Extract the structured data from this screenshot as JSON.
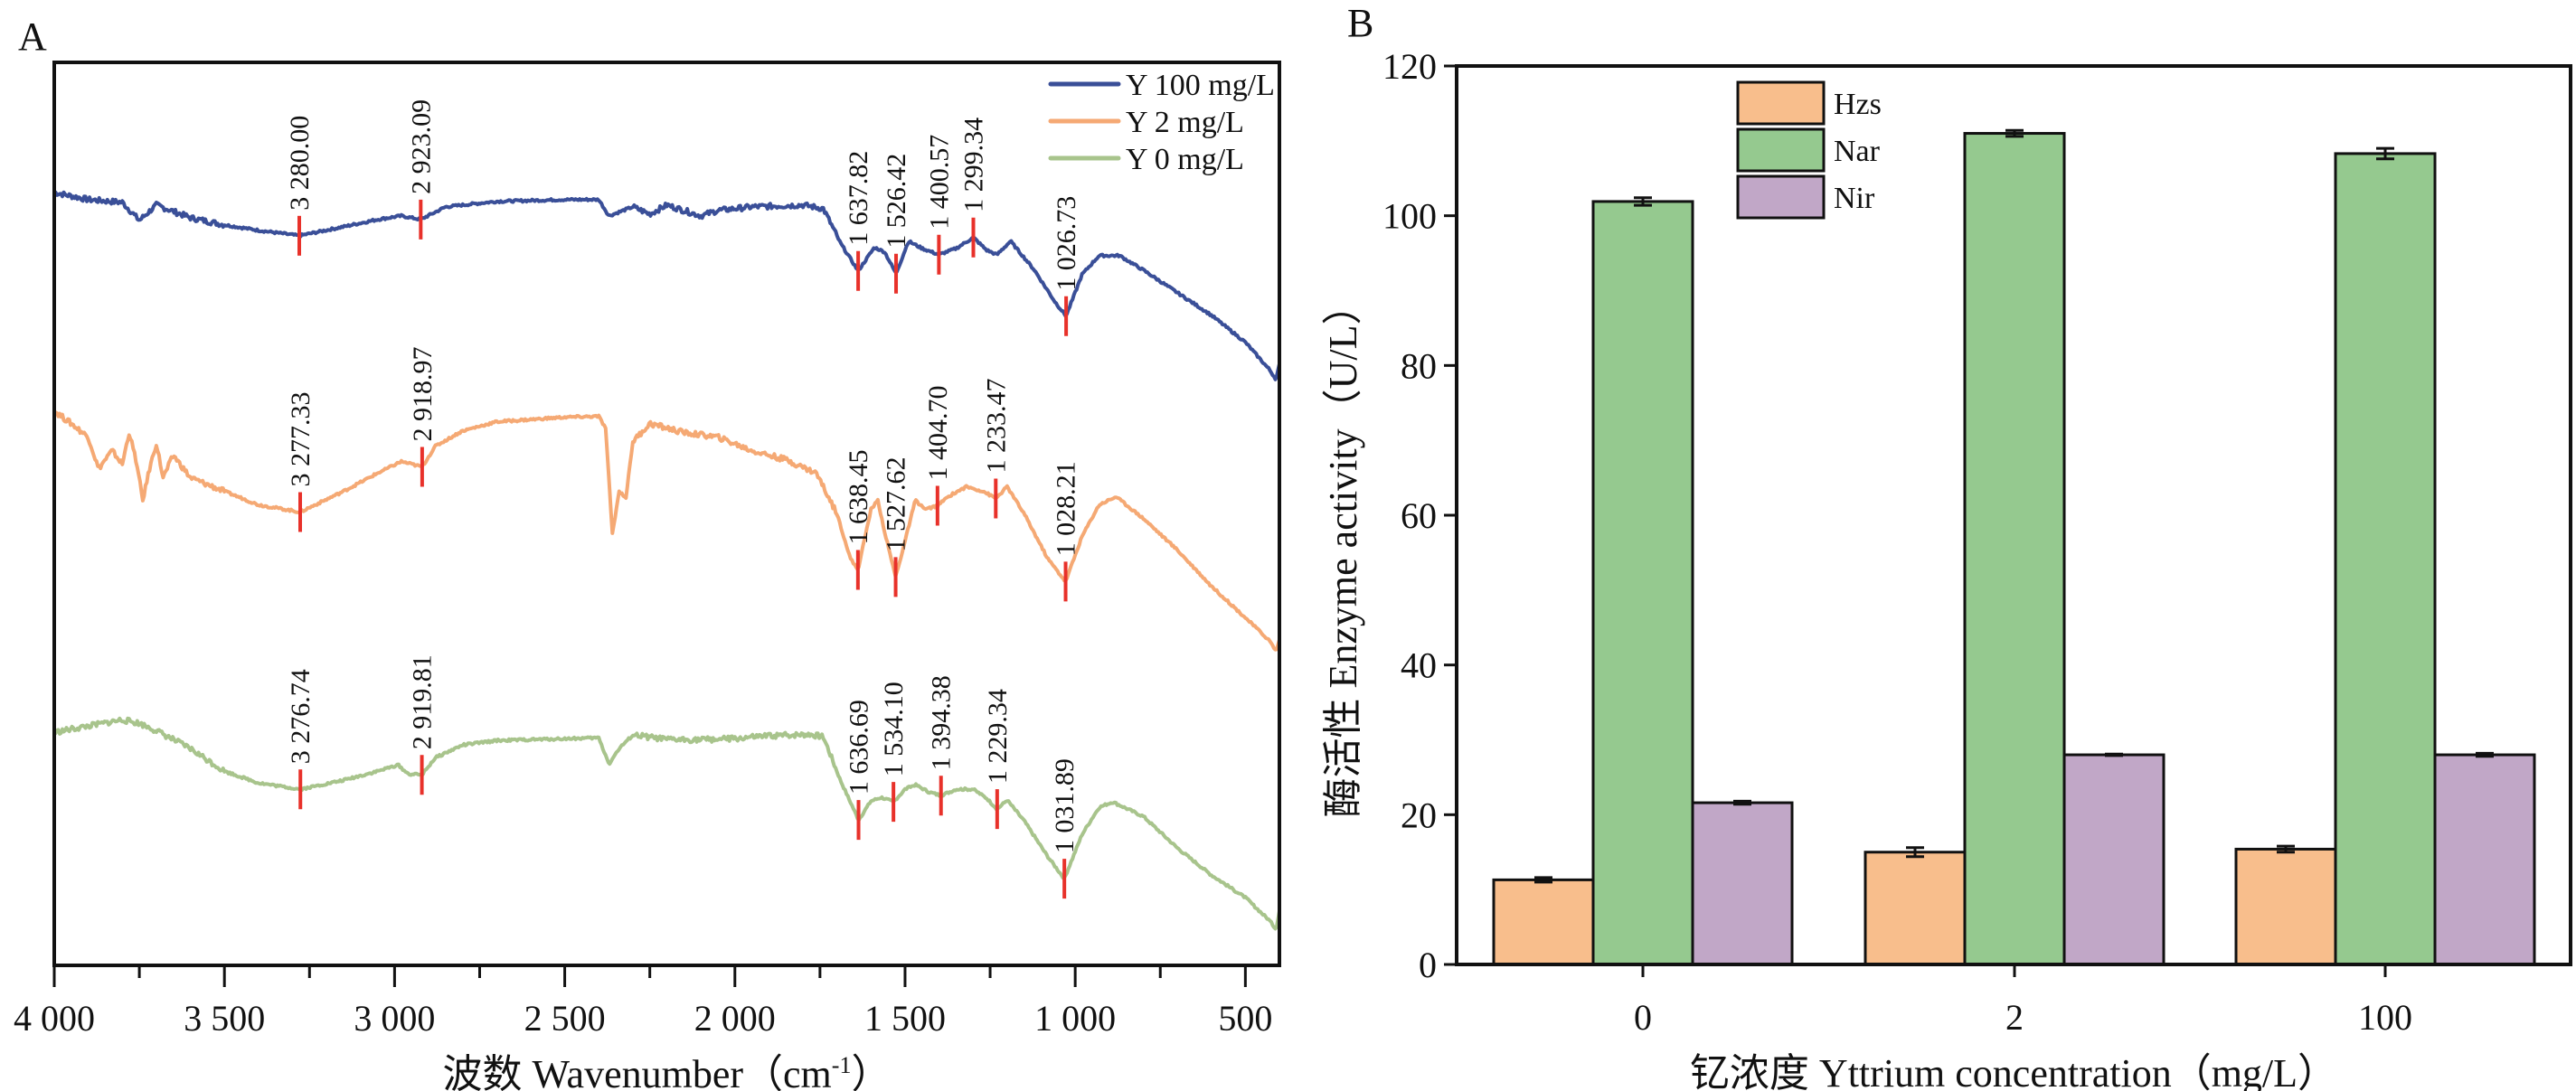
{
  "chart_data": [
    {
      "panel": "A",
      "type": "line",
      "title": "",
      "xlabel": "波数 Wavenumber（cm-1）",
      "xlabel_parts": {
        "main": "波数 Wavenumber（cm",
        "sup": "-1",
        "close": "）"
      },
      "ylabel": "",
      "xlim": [
        4000,
        400
      ],
      "xticks": [
        4000,
        3500,
        3000,
        2500,
        2000,
        1500,
        1000,
        500
      ],
      "xtick_labels": [
        "4 000",
        "3 500",
        "3 000",
        "2 500",
        "2 000",
        "1 500",
        "1 000",
        "500"
      ],
      "ylim": [
        0,
        100
      ],
      "y_units": "relative (offset traces, no y ticks)",
      "grid": false,
      "legend_position": "top-right",
      "peak_marker_color": "#e8312a",
      "series": [
        {
          "name": "Y 100 mg/L",
          "color": "#3a4f98",
          "points": [
            [
              4000,
              85.6
            ],
            [
              3900,
              84.8
            ],
            [
              3800,
              84.5
            ],
            [
              3750,
              82.5
            ],
            [
              3700,
              84.2
            ],
            [
              3600,
              82.8
            ],
            [
              3500,
              82.0
            ],
            [
              3400,
              81.4
            ],
            [
              3280,
              80.8
            ],
            [
              3150,
              81.8
            ],
            [
              3050,
              82.6
            ],
            [
              2980,
              83.0
            ],
            [
              2923,
              82.6
            ],
            [
              2850,
              84.0
            ],
            [
              2700,
              84.6
            ],
            [
              2500,
              84.8
            ],
            [
              2400,
              84.8
            ],
            [
              2370,
              83.0
            ],
            [
              2300,
              84.0
            ],
            [
              2250,
              83.2
            ],
            [
              2200,
              84.2
            ],
            [
              2100,
              83.0
            ],
            [
              2050,
              83.6
            ],
            [
              1950,
              84.0
            ],
            [
              1800,
              84.2
            ],
            [
              1740,
              83.8
            ],
            [
              1690,
              80.0
            ],
            [
              1637.82,
              76.9
            ],
            [
              1590,
              79.5
            ],
            [
              1560,
              79.0
            ],
            [
              1526.42,
              76.6
            ],
            [
              1490,
              80.2
            ],
            [
              1450,
              79.4
            ],
            [
              1400.57,
              78.7
            ],
            [
              1350,
              79.4
            ],
            [
              1299.34,
              80.6
            ],
            [
              1260,
              79.2
            ],
            [
              1230,
              78.7
            ],
            [
              1190,
              80.2
            ],
            [
              1120,
              77.0
            ],
            [
              1060,
              73.5
            ],
            [
              1026.73,
              71.9
            ],
            [
              980,
              76.5
            ],
            [
              930,
              78.6
            ],
            [
              870,
              78.6
            ],
            [
              800,
              77.0
            ],
            [
              700,
              74.5
            ],
            [
              600,
              72.0
            ],
            [
              500,
              69.0
            ],
            [
              430,
              66.0
            ],
            [
              410,
              64.9
            ],
            [
              400,
              66.5
            ]
          ],
          "peaks": [
            {
              "label": "3 280.00",
              "x": 3280.0
            },
            {
              "label": "2 923.09",
              "x": 2923.09
            },
            {
              "label": "1 637.82",
              "x": 1637.82
            },
            {
              "label": "1 526.42",
              "x": 1526.42
            },
            {
              "label": "1 400.57",
              "x": 1400.57
            },
            {
              "label": "1 299.34",
              "x": 1299.34
            },
            {
              "label": "1 026.73",
              "x": 1026.73
            }
          ]
        },
        {
          "name": "Y 2 mg/L",
          "color": "#f5a974",
          "points": [
            [
              4000,
              61.4
            ],
            [
              3950,
              60.0
            ],
            [
              3900,
              58.5
            ],
            [
              3870,
              55.0
            ],
            [
              3830,
              57.0
            ],
            [
              3800,
              55.5
            ],
            [
              3780,
              59.0
            ],
            [
              3760,
              56.0
            ],
            [
              3740,
              51.5
            ],
            [
              3720,
              55.0
            ],
            [
              3700,
              57.8
            ],
            [
              3680,
              54.0
            ],
            [
              3650,
              56.5
            ],
            [
              3600,
              54.0
            ],
            [
              3500,
              52.5
            ],
            [
              3400,
              51.0
            ],
            [
              3277.33,
              50.2
            ],
            [
              3150,
              52.5
            ],
            [
              3050,
              54.5
            ],
            [
              2980,
              55.8
            ],
            [
              2919,
              55.2
            ],
            [
              2880,
              57.5
            ],
            [
              2800,
              59.2
            ],
            [
              2700,
              60.2
            ],
            [
              2500,
              60.7
            ],
            [
              2400,
              60.8
            ],
            [
              2380,
              59.5
            ],
            [
              2360,
              47.8
            ],
            [
              2340,
              52.5
            ],
            [
              2320,
              51.8
            ],
            [
              2300,
              58.0
            ],
            [
              2250,
              60.0
            ],
            [
              2150,
              59.0
            ],
            [
              2050,
              58.5
            ],
            [
              1950,
              57.0
            ],
            [
              1850,
              56.0
            ],
            [
              1760,
              54.5
            ],
            [
              1700,
              50.0
            ],
            [
              1660,
              45.0
            ],
            [
              1638.45,
              43.8
            ],
            [
              1600,
              50.5
            ],
            [
              1580,
              51.5
            ],
            [
              1560,
              48.0
            ],
            [
              1527.62,
              43.0
            ],
            [
              1500,
              47.0
            ],
            [
              1470,
              51.5
            ],
            [
              1440,
              50.5
            ],
            [
              1404.7,
              50.9
            ],
            [
              1370,
              52.0
            ],
            [
              1320,
              53.0
            ],
            [
              1270,
              52.5
            ],
            [
              1233.47,
              51.7
            ],
            [
              1200,
              53.0
            ],
            [
              1150,
              50.0
            ],
            [
              1080,
              45.0
            ],
            [
              1028.21,
              42.5
            ],
            [
              980,
              47.5
            ],
            [
              930,
              51.0
            ],
            [
              880,
              51.9
            ],
            [
              800,
              49.5
            ],
            [
              700,
              46.0
            ],
            [
              600,
              42.0
            ],
            [
              500,
              38.5
            ],
            [
              430,
              36.0
            ],
            [
              410,
              34.8
            ],
            [
              400,
              36.0
            ]
          ],
          "peaks": [
            {
              "label": "3 277.33",
              "x": 3277.33
            },
            {
              "label": "2 918.97",
              "x": 2918.97
            },
            {
              "label": "1 638.45",
              "x": 1638.45
            },
            {
              "label": "1 527.62",
              "x": 1527.62
            },
            {
              "label": "1 404.70",
              "x": 1404.7
            },
            {
              "label": "1 233.47",
              "x": 1233.47
            },
            {
              "label": "1 028.21",
              "x": 1028.21
            }
          ]
        },
        {
          "name": "Y 0 mg/L",
          "color": "#a8c48c",
          "points": [
            [
              4000,
              25.8
            ],
            [
              3900,
              26.5
            ],
            [
              3800,
              27.2
            ],
            [
              3750,
              26.8
            ],
            [
              3700,
              26.0
            ],
            [
              3600,
              24.0
            ],
            [
              3500,
              21.5
            ],
            [
              3400,
              20.2
            ],
            [
              3276.74,
              19.5
            ],
            [
              3150,
              20.5
            ],
            [
              3050,
              21.5
            ],
            [
              2990,
              22.2
            ],
            [
              2960,
              21.2
            ],
            [
              2919.81,
              21.1
            ],
            [
              2880,
              23.0
            ],
            [
              2800,
              24.4
            ],
            [
              2700,
              24.9
            ],
            [
              2500,
              25.1
            ],
            [
              2400,
              25.2
            ],
            [
              2370,
              22.3
            ],
            [
              2340,
              24.0
            ],
            [
              2300,
              25.5
            ],
            [
              2200,
              25.0
            ],
            [
              2100,
              25.0
            ],
            [
              2000,
              25.1
            ],
            [
              1900,
              25.4
            ],
            [
              1780,
              25.6
            ],
            [
              1740,
              25.3
            ],
            [
              1690,
              20.5
            ],
            [
              1636.69,
              16.1
            ],
            [
              1600,
              18.2
            ],
            [
              1570,
              18.6
            ],
            [
              1534.1,
              18.1
            ],
            [
              1500,
              19.5
            ],
            [
              1470,
              20.0
            ],
            [
              1430,
              19.2
            ],
            [
              1394.38,
              18.8
            ],
            [
              1350,
              19.5
            ],
            [
              1300,
              19.5
            ],
            [
              1260,
              18.5
            ],
            [
              1229.34,
              17.3
            ],
            [
              1200,
              18.3
            ],
            [
              1150,
              16.0
            ],
            [
              1080,
              12.0
            ],
            [
              1031.89,
              9.6
            ],
            [
              980,
              14.5
            ],
            [
              930,
              17.5
            ],
            [
              890,
              18.1
            ],
            [
              800,
              16.5
            ],
            [
              700,
              13.0
            ],
            [
              600,
              10.0
            ],
            [
              500,
              7.5
            ],
            [
              430,
              5.0
            ],
            [
              410,
              4.0
            ],
            [
              400,
              6.0
            ]
          ],
          "peaks": [
            {
              "label": "3 276.74",
              "x": 3276.74
            },
            {
              "label": "2 919.81",
              "x": 2919.81
            },
            {
              "label": "1 636.69",
              "x": 1636.69
            },
            {
              "label": "1 534.10",
              "x": 1534.1
            },
            {
              "label": "1 394.38",
              "x": 1394.38
            },
            {
              "label": "1 229.34",
              "x": 1229.34
            },
            {
              "label": "1 031.89",
              "x": 1031.89
            }
          ]
        }
      ]
    },
    {
      "panel": "B",
      "type": "bar",
      "title": "",
      "xlabel": "钇浓度 Yttrium concentration（mg/L）",
      "ylabel": "酶活性 Enzyme activity（U/L）",
      "categories": [
        "0",
        "2",
        "100"
      ],
      "ylim": [
        0,
        120
      ],
      "yticks": [
        0,
        20,
        40,
        60,
        80,
        100,
        120
      ],
      "grid": false,
      "legend_position": "top-left",
      "series": [
        {
          "name": "Hzs",
          "color": "#f8be8c",
          "values": [
            11.3,
            15.0,
            15.4
          ],
          "errors": [
            0.3,
            0.6,
            0.4
          ]
        },
        {
          "name": "Nar",
          "color": "#95c98f",
          "values": [
            101.9,
            111.0,
            108.3
          ],
          "errors": [
            0.5,
            0.4,
            0.7
          ]
        },
        {
          "name": "Nir",
          "color": "#c1a7c7",
          "values": [
            21.6,
            28.0,
            28.0
          ],
          "errors": [
            0.2,
            0.1,
            0.2
          ]
        }
      ]
    }
  ],
  "panels": {
    "a_label": "A",
    "b_label": "B"
  }
}
